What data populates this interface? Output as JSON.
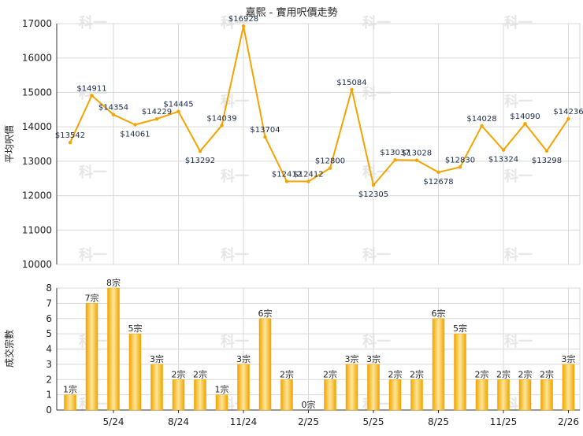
{
  "colors": {
    "line": "#f5a300",
    "bar_light": "#ffe79a",
    "bar_dark": "#f0a400",
    "grid": "#d9d9d9",
    "axis": "#333333",
    "watermark": "#e6e6e6"
  },
  "watermark": "科一",
  "chart_data": [
    {
      "type": "line",
      "title": "嘉熙 - 實用呎價走勢",
      "ylabel": "平均呎價",
      "ylim": [
        10000,
        17000
      ],
      "yticks": [
        "10000",
        "11000",
        "12000",
        "13000",
        "14000",
        "15000",
        "16000",
        "17000"
      ],
      "grid": true,
      "series": [
        {
          "values": [
            13542,
            14911,
            14354,
            14061,
            14229,
            14445,
            13292,
            14039,
            16928,
            13704,
            12412,
            12412,
            12800,
            15084,
            12305,
            13037,
            13028,
            12678,
            12830,
            14028,
            13324,
            14090,
            13298,
            14236
          ],
          "labels": [
            "$13542",
            "$14911",
            "$14354",
            "$14061",
            "$14229",
            "$14445",
            "$13292",
            "$14039",
            "$16928",
            "$13704",
            "$12412",
            "$12412",
            "$12800",
            "$15084",
            "$12305",
            "$13037",
            "$13028",
            "$12678",
            "$12830",
            "$14028",
            "$13324",
            "$14090",
            "$13298",
            "$14236"
          ]
        }
      ]
    },
    {
      "type": "bar",
      "ylabel": "成交宗數",
      "ylim": [
        0,
        8
      ],
      "yticks": [
        "0",
        "1",
        "2",
        "3",
        "4",
        "5",
        "6",
        "7",
        "8"
      ],
      "grid": true,
      "values": [
        1,
        7,
        8,
        5,
        3,
        2,
        2,
        1,
        3,
        6,
        2,
        0,
        2,
        3,
        3,
        2,
        2,
        6,
        5,
        2,
        2,
        2,
        2,
        3
      ],
      "labels": [
        "1宗",
        "7宗",
        "8宗",
        "5宗",
        "3宗",
        "2宗",
        "2宗",
        "1宗",
        "3宗",
        "6宗",
        "2宗",
        "0宗",
        "2宗",
        "3宗",
        "3宗",
        "2宗",
        "2宗",
        "6宗",
        "5宗",
        "2宗",
        "2宗",
        "2宗",
        "2宗",
        "3宗"
      ],
      "x_tick_labels": [
        {
          "index": 2,
          "label": "5/24"
        },
        {
          "index": 5,
          "label": "8/24"
        },
        {
          "index": 8,
          "label": "11/24"
        },
        {
          "index": 11,
          "label": "2/25"
        },
        {
          "index": 14,
          "label": "5/25"
        },
        {
          "index": 17,
          "label": "8/25"
        },
        {
          "index": 20,
          "label": "11/25"
        },
        {
          "index": 23,
          "label": "2/26"
        }
      ]
    }
  ]
}
